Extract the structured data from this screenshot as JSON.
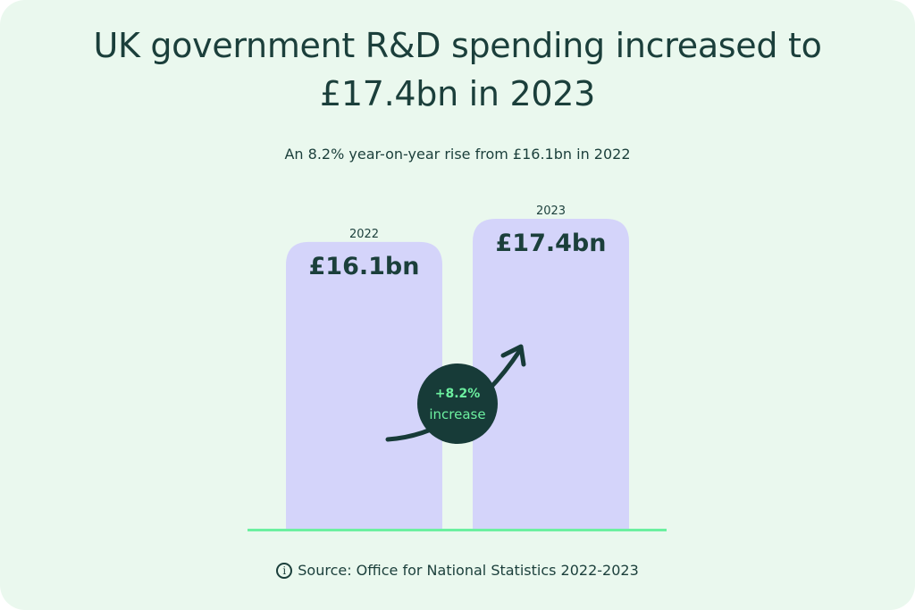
{
  "title_lines": [
    "UK government R&D spending increased to",
    "£17.4bn in 2023"
  ],
  "subtitle": "An 8.2% year-on-year rise from £16.1bn in 2022",
  "chart_data": {
    "type": "bar",
    "categories": [
      "2022",
      "2023"
    ],
    "values": [
      16.1,
      17.4
    ],
    "value_labels": [
      "£16.1bn",
      "£17.4bn"
    ],
    "unit": "£bn",
    "ylim": [
      0,
      17.4
    ],
    "grid": false,
    "annotation": {
      "value": "+8.2%",
      "label": "increase"
    },
    "colors": {
      "bar": "#d4d4fa",
      "baseline": "#6cf0a0",
      "badge": "#173b38",
      "badge_text": "#6cf0a0",
      "text": "#1b3f3b"
    }
  },
  "source": {
    "icon": "info-icon",
    "text": "Source: Office for National Statistics 2022-2023"
  }
}
